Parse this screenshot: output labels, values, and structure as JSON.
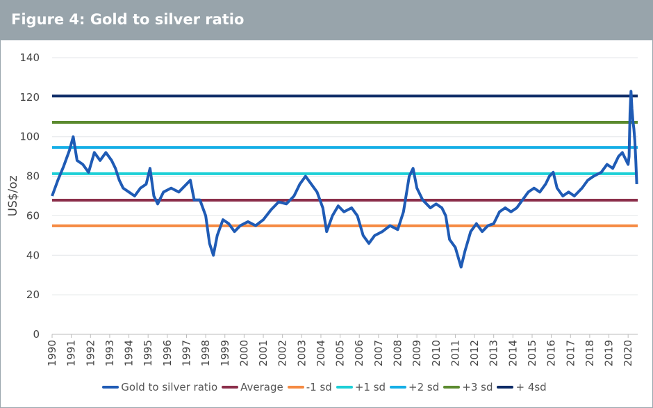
{
  "header": {
    "title": "Figure 4: Gold to silver ratio"
  },
  "chart_data": {
    "type": "line",
    "title": "Figure 4: Gold to silver ratio",
    "ylabel": "US$/oz",
    "xlabel": "",
    "ylim": [
      0,
      140
    ],
    "xlim": [
      1990,
      2020.5
    ],
    "yticks": [
      0,
      20,
      40,
      60,
      80,
      100,
      120,
      140
    ],
    "xticks": [
      "1990",
      "1991",
      "1992",
      "1993",
      "1994",
      "1995",
      "1996",
      "1997",
      "1998",
      "1999",
      "2000",
      "2001",
      "2002",
      "2003",
      "2004",
      "2005",
      "2006",
      "2007",
      "2008",
      "2009",
      "2010",
      "2011",
      "2012",
      "2013",
      "2014",
      "2015",
      "2016",
      "2017",
      "2018",
      "2019",
      "2020"
    ],
    "grid": true,
    "legend_position": "bottom",
    "series": [
      {
        "name": "Gold to silver ratio",
        "color": "#1f5bb5",
        "x": [
          1990.0,
          1990.3,
          1990.6,
          1990.9,
          1991.1,
          1991.3,
          1991.6,
          1991.9,
          1992.2,
          1992.5,
          1992.8,
          1993.1,
          1993.3,
          1993.5,
          1993.7,
          1994.0,
          1994.3,
          1994.6,
          1994.9,
          1995.1,
          1995.3,
          1995.5,
          1995.8,
          1996.2,
          1996.6,
          1997.0,
          1997.2,
          1997.4,
          1997.7,
          1998.0,
          1998.2,
          1998.4,
          1998.6,
          1998.9,
          1999.2,
          1999.5,
          1999.8,
          2000.2,
          2000.6,
          2001.0,
          2001.4,
          2001.8,
          2002.2,
          2002.6,
          2002.9,
          2003.2,
          2003.5,
          2003.8,
          2004.1,
          2004.3,
          2004.6,
          2004.9,
          2005.2,
          2005.6,
          2005.9,
          2006.2,
          2006.5,
          2006.8,
          2007.2,
          2007.6,
          2008.0,
          2008.3,
          2008.6,
          2008.8,
          2009.0,
          2009.3,
          2009.7,
          2010.0,
          2010.3,
          2010.5,
          2010.7,
          2011.0,
          2011.3,
          2011.5,
          2011.8,
          2012.1,
          2012.4,
          2012.7,
          2013.0,
          2013.3,
          2013.6,
          2013.9,
          2014.2,
          2014.5,
          2014.8,
          2015.1,
          2015.4,
          2015.7,
          2015.9,
          2016.1,
          2016.3,
          2016.6,
          2016.9,
          2017.2,
          2017.6,
          2017.9,
          2018.2,
          2018.6,
          2018.9,
          2019.2,
          2019.5,
          2019.7,
          2019.9,
          2020.0,
          2020.05,
          2020.1,
          2020.15,
          2020.2,
          2020.25,
          2020.3,
          2020.35,
          2020.4,
          2020.45
        ],
        "values": [
          70,
          78,
          85,
          93,
          100,
          88,
          86,
          82,
          92,
          88,
          92,
          88,
          84,
          78,
          74,
          72,
          70,
          74,
          76,
          84,
          70,
          66,
          72,
          74,
          72,
          76,
          78,
          68,
          68,
          60,
          46,
          40,
          50,
          58,
          56,
          52,
          55,
          57,
          55,
          58,
          63,
          67,
          66,
          70,
          76,
          80,
          76,
          72,
          64,
          52,
          60,
          65,
          62,
          64,
          60,
          50,
          46,
          50,
          52,
          55,
          53,
          62,
          80,
          84,
          74,
          68,
          64,
          66,
          64,
          60,
          48,
          44,
          34,
          42,
          52,
          56,
          52,
          55,
          56,
          62,
          64,
          62,
          64,
          68,
          72,
          74,
          72,
          76,
          80,
          82,
          74,
          70,
          72,
          70,
          74,
          78,
          80,
          82,
          86,
          84,
          90,
          92,
          88,
          86,
          90,
          112,
          123,
          114,
          108,
          104,
          98,
          88,
          76
        ]
      },
      {
        "name": "Average",
        "color": "#8b2e4a",
        "values": [
          67.9
        ]
      },
      {
        "name": "-1 sd",
        "color": "#f58a42",
        "values": [
          54.9
        ]
      },
      {
        "name": "+1 sd",
        "color": "#1ccfd6",
        "values": [
          81.3
        ]
      },
      {
        "name": "+2 sd",
        "color": "#14aee6",
        "values": [
          94.6
        ]
      },
      {
        "name": "+3 sd",
        "color": "#5b8a2e",
        "values": [
          107.3
        ]
      },
      {
        "name": "+ 4sd",
        "color": "#0c2a66",
        "values": [
          120.6
        ]
      }
    ]
  }
}
